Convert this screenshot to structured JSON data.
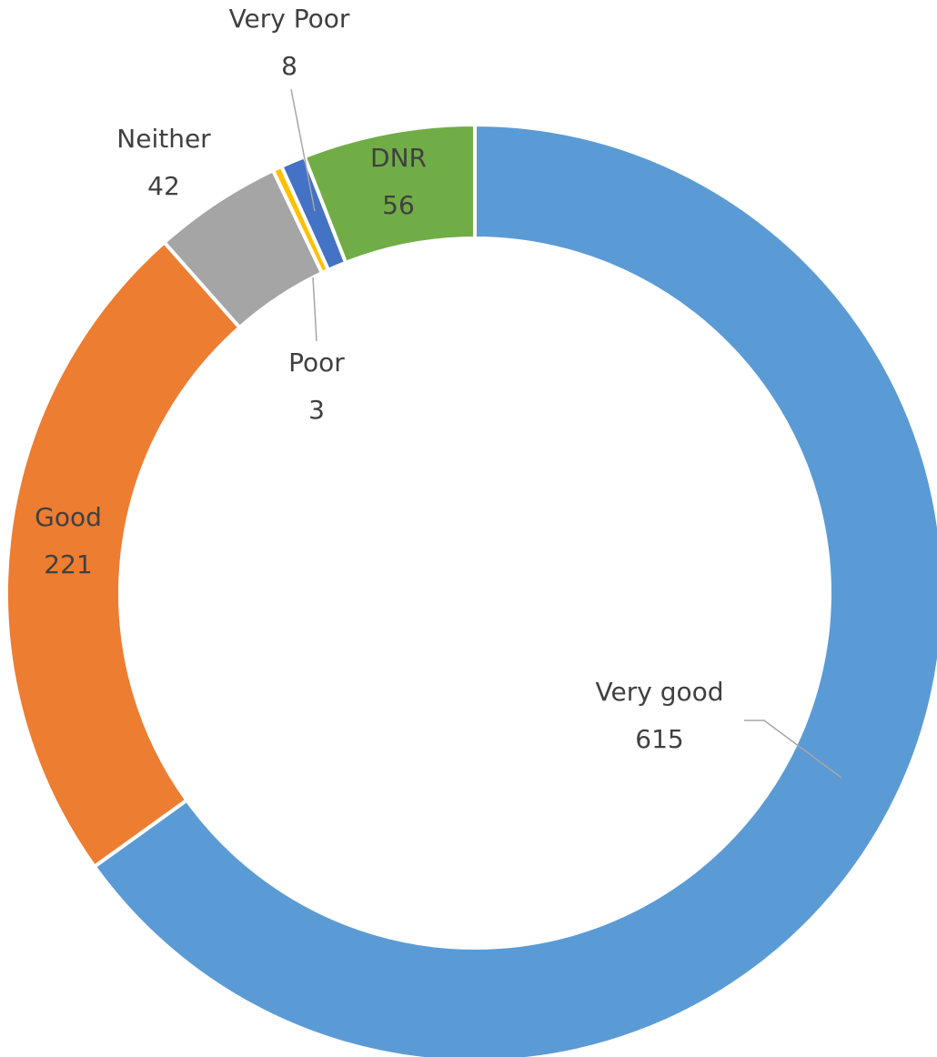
{
  "chart_data": {
    "type": "pie",
    "subtype": "donut",
    "title": "",
    "slices": [
      {
        "label": "Very good",
        "value": 615,
        "color": "#5b9bd5",
        "label_color": "#404040"
      },
      {
        "label": "Good",
        "value": 221,
        "color": "#ed7d31",
        "label_color": "#404040"
      },
      {
        "label": "Neither",
        "value": 42,
        "color": "#a5a5a5",
        "label_color": "#404040"
      },
      {
        "label": "Poor",
        "value": 3,
        "color": "#ffc000",
        "label_color": "#404040"
      },
      {
        "label": "Very Poor",
        "value": 8,
        "color": "#4472c4",
        "label_color": "#404040"
      },
      {
        "label": "DNR",
        "value": 56,
        "color": "#70ad47",
        "label_color": "#404040"
      }
    ],
    "legend": "none",
    "start_angle": "top, clockwise"
  }
}
